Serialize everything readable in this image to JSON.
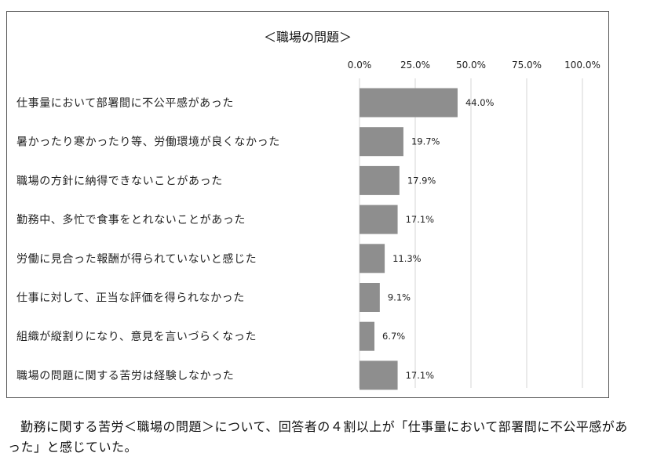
{
  "chart_data": {
    "type": "bar",
    "orientation": "horizontal",
    "title": "＜職場の問題＞",
    "categories": [
      "仕事量において部署間に不公平感があった",
      "暑かったり寒かったり等、労働環境が良くなかった",
      "職場の方針に納得できないことがあった",
      "勤務中、多忙で食事をとれないことがあった",
      "労働に見合った報酬が得られていないと感じた",
      "仕事に対して、正当な評価を得られなかった",
      "組織が縦割りになり、意見を言いづらくなった",
      "職場の問題に関する苦労は経験しなかった"
    ],
    "values": [
      44.0,
      19.7,
      17.9,
      17.1,
      11.3,
      9.1,
      6.7,
      17.1
    ],
    "value_labels": [
      "44.0%",
      "19.7%",
      "17.9%",
      "17.1%",
      "11.3%",
      "9.1%",
      "6.7%",
      "17.1%"
    ],
    "xlim": [
      0,
      100
    ],
    "xticks": [
      0,
      25,
      50,
      75,
      100
    ],
    "xtick_labels": [
      "0.0%",
      "25.0%",
      "50.0%",
      "75.0%",
      "100.0%"
    ],
    "xaxis_position": "top",
    "grid": true,
    "bar_color": "#8e8e8e",
    "legend": "none"
  },
  "caption": "勤務に関する苦労＜職場の問題＞について、回答者の４割以上が「仕事量において部署間に不公平感があった」と感じていた。"
}
